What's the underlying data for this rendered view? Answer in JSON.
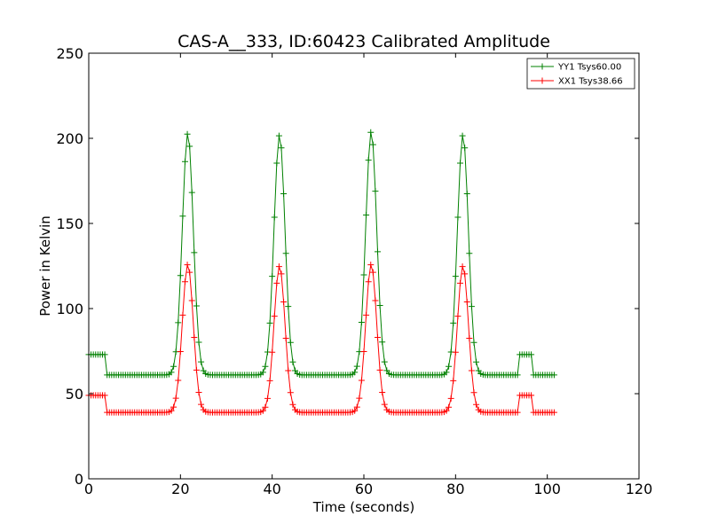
{
  "chart_data": {
    "type": "line",
    "title": "CAS-A__333, ID:60423 Calibrated Amplitude",
    "xlabel": "Time (seconds)",
    "ylabel": "Power in Kelvin",
    "xlim": [
      0,
      120
    ],
    "ylim": [
      0,
      250
    ],
    "xticks": [
      0,
      20,
      40,
      60,
      80,
      100,
      120
    ],
    "yticks": [
      0,
      50,
      100,
      150,
      200,
      250
    ],
    "grid": false,
    "legend_position": "top-right",
    "marker": "+",
    "sample_interval": 0.5,
    "x_range": [
      0,
      101.5
    ],
    "series": [
      {
        "name": "YY1 Tsys60.00",
        "color": "#008000",
        "baseline": 61,
        "cal_level": 73,
        "cal_segments": [
          [
            0,
            4
          ],
          [
            94,
            97
          ]
        ],
        "peaks": [
          {
            "center": 21.6,
            "height": 203,
            "sigma": 1.2
          },
          {
            "center": 41.6,
            "height": 202,
            "sigma": 1.2
          },
          {
            "center": 61.6,
            "height": 204,
            "sigma": 1.2
          },
          {
            "center": 81.6,
            "height": 202,
            "sigma": 1.2
          }
        ]
      },
      {
        "name": "XX1 Tsys38.66",
        "color": "#ff0000",
        "baseline": 39,
        "cal_level": 49,
        "cal_segments": [
          [
            0,
            4
          ],
          [
            94,
            97
          ]
        ],
        "peaks": [
          {
            "center": 21.6,
            "height": 126,
            "sigma": 1.2
          },
          {
            "center": 41.6,
            "height": 125,
            "sigma": 1.2
          },
          {
            "center": 61.6,
            "height": 126,
            "sigma": 1.2
          },
          {
            "center": 81.6,
            "height": 125,
            "sigma": 1.2
          }
        ]
      }
    ]
  }
}
